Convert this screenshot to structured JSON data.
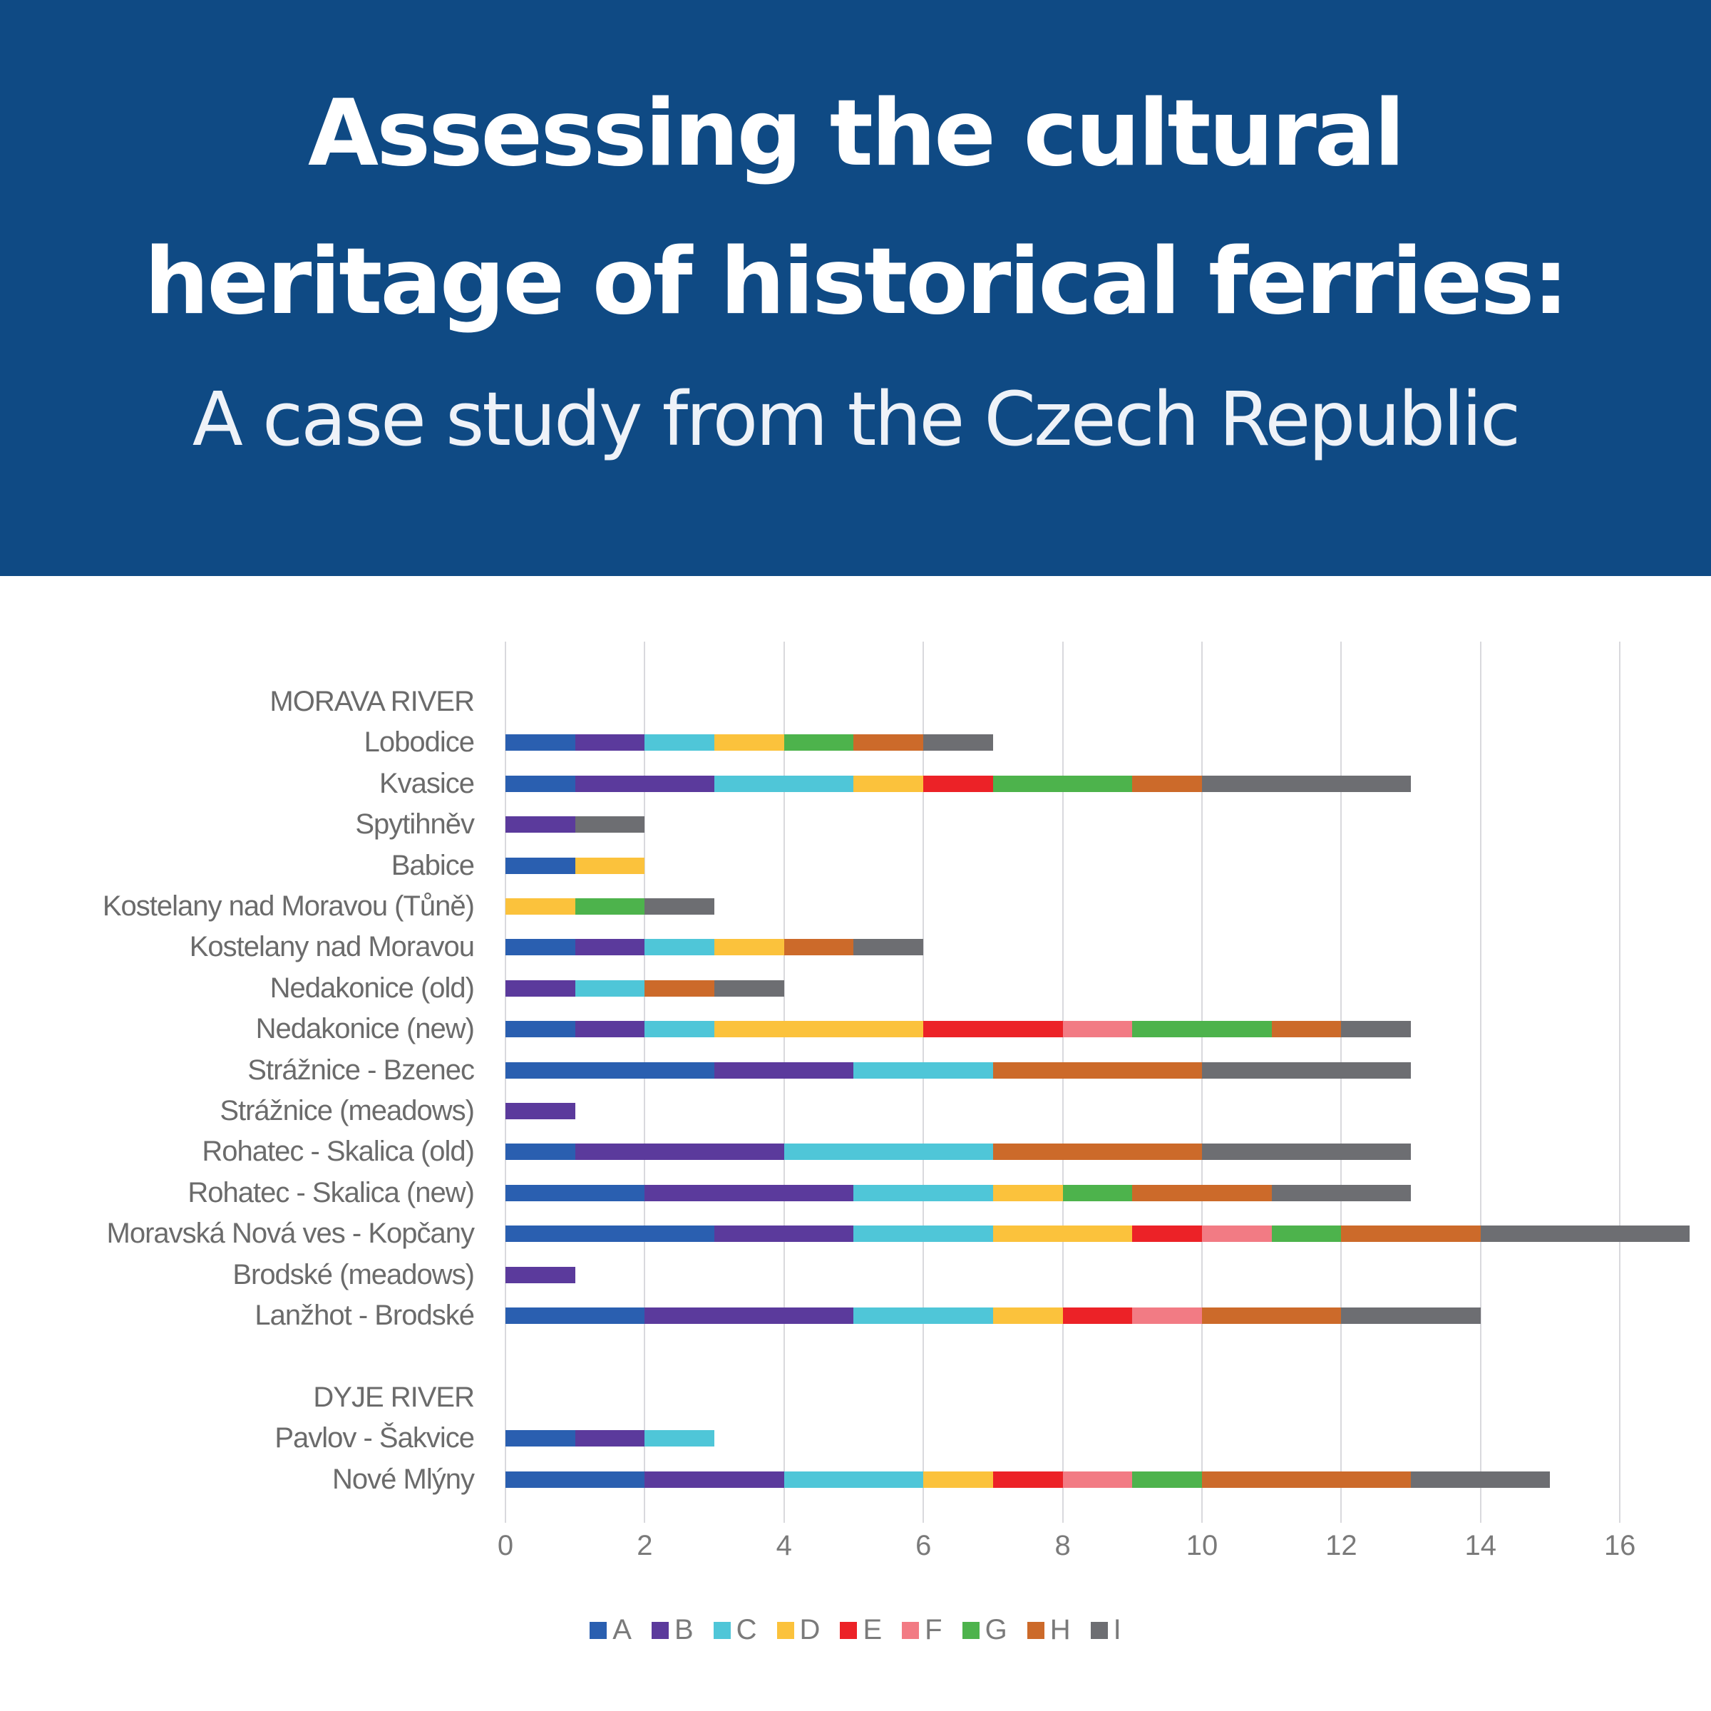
{
  "header": {
    "title_line1": "Assessing the cultural",
    "title_line2": "heritage of historical ferries:",
    "subtitle": "A case study from the Czech Republic",
    "background": "#0f4a84"
  },
  "legend": [
    {
      "key": "A",
      "color": "#2a5fb0"
    },
    {
      "key": "B",
      "color": "#5b3a9c"
    },
    {
      "key": "C",
      "color": "#4fc6d8"
    },
    {
      "key": "D",
      "color": "#fbc23c"
    },
    {
      "key": "E",
      "color": "#ec2227"
    },
    {
      "key": "F",
      "color": "#f27b84"
    },
    {
      "key": "G",
      "color": "#4db34c"
    },
    {
      "key": "H",
      "color": "#cc6a2a"
    },
    {
      "key": "I",
      "color": "#6d6e72"
    }
  ],
  "x_ticks": [
    "0",
    "2",
    "4",
    "6",
    "8",
    "10",
    "12",
    "14",
    "16"
  ],
  "chart_data": {
    "type": "bar",
    "orientation": "horizontal",
    "stacked": true,
    "title": "",
    "xlabel": "",
    "ylabel": "",
    "xlim": [
      0,
      16
    ],
    "grid": true,
    "legend_position": "bottom",
    "categories": [
      "MORAVA RIVER",
      "Lobodice",
      "Kvasice",
      "Spytihněv",
      "Babice",
      "Kostelany nad Moravou (Tůně)",
      "Kostelany nad Moravou",
      "Nedakonice (old)",
      "Nedakonice (new)",
      "Strážnice - Bzenec",
      "Strážnice (meadows)",
      "Rohatec - Skalica (old)",
      "Rohatec - Skalica (new)",
      "Moravská Nová ves - Kopčany",
      "Brodské (meadows)",
      "Lanžhot - Brodské",
      "",
      "DYJE RIVER",
      "Pavlov - Šakvice",
      "Nové Mlýny"
    ],
    "series": [
      {
        "name": "A",
        "values": [
          0,
          1,
          1,
          0,
          1,
          0,
          1,
          0,
          1,
          3,
          0,
          1,
          2,
          3,
          0,
          2,
          0,
          0,
          1,
          2
        ]
      },
      {
        "name": "B",
        "values": [
          0,
          1,
          2,
          1,
          0,
          0,
          1,
          1,
          1,
          2,
          1,
          3,
          3,
          2,
          1,
          3,
          0,
          0,
          1,
          2
        ]
      },
      {
        "name": "C",
        "values": [
          0,
          1,
          2,
          0,
          0,
          0,
          1,
          1,
          1,
          2,
          0,
          3,
          2,
          2,
          0,
          2,
          0,
          0,
          1,
          2
        ]
      },
      {
        "name": "D",
        "values": [
          0,
          1,
          1,
          0,
          1,
          1,
          1,
          0,
          3,
          0,
          0,
          0,
          1,
          2,
          0,
          1,
          0,
          0,
          0,
          1
        ]
      },
      {
        "name": "E",
        "values": [
          0,
          0,
          1,
          0,
          0,
          0,
          0,
          0,
          2,
          0,
          0,
          0,
          0,
          1,
          0,
          1,
          0,
          0,
          0,
          1
        ]
      },
      {
        "name": "F",
        "values": [
          0,
          0,
          0,
          0,
          0,
          0,
          0,
          0,
          1,
          0,
          0,
          0,
          0,
          1,
          0,
          1,
          0,
          0,
          0,
          1
        ]
      },
      {
        "name": "G",
        "values": [
          0,
          1,
          2,
          0,
          0,
          1,
          0,
          0,
          2,
          0,
          0,
          0,
          1,
          1,
          0,
          0,
          0,
          0,
          0,
          1
        ]
      },
      {
        "name": "H",
        "values": [
          0,
          1,
          1,
          0,
          0,
          0,
          1,
          1,
          1,
          3,
          0,
          3,
          2,
          2,
          0,
          2,
          0,
          0,
          0,
          3
        ]
      },
      {
        "name": "I",
        "values": [
          0,
          1,
          3,
          1,
          0,
          1,
          1,
          1,
          1,
          3,
          0,
          3,
          2,
          3,
          0,
          2,
          0,
          0,
          0,
          2
        ]
      }
    ]
  }
}
